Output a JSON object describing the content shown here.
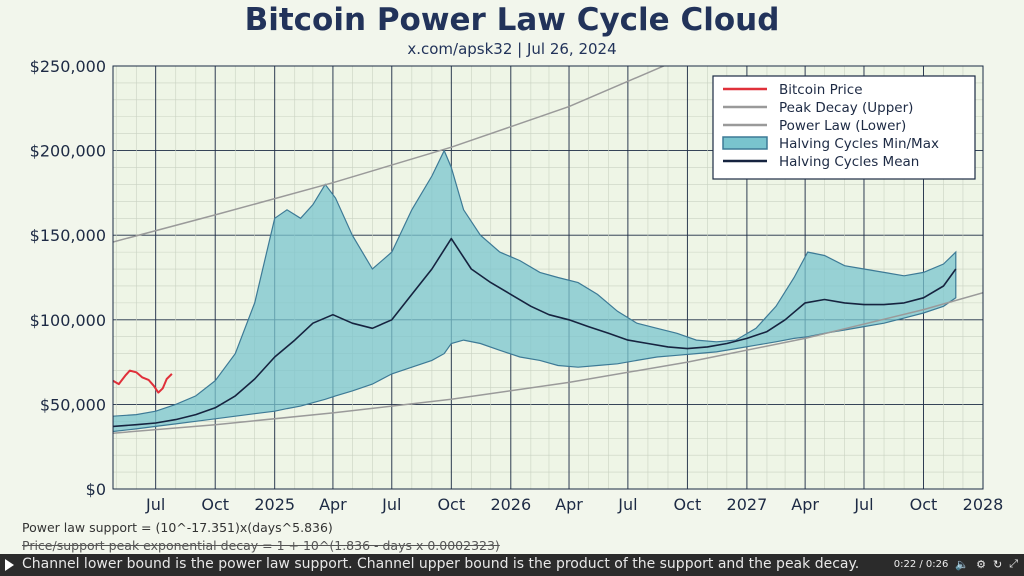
{
  "chart_data": {
    "type": "line",
    "title": "Bitcoin Power Law Cycle Cloud",
    "subtitle": "x.com/apsk32  |  Jul 26, 2024",
    "x_ticks": [
      "Jul",
      "Oct",
      "2025",
      "Apr",
      "Jul",
      "Oct",
      "2026",
      "Apr",
      "Jul",
      "Oct",
      "2027",
      "Apr",
      "Jul",
      "Oct",
      "2028"
    ],
    "x_tick_dates": [
      "2024-07-01",
      "2024-10-01",
      "2025-01-01",
      "2025-04-01",
      "2025-07-01",
      "2025-10-01",
      "2026-01-01",
      "2026-04-01",
      "2026-07-01",
      "2026-10-01",
      "2027-01-01",
      "2027-04-01",
      "2027-07-01",
      "2027-10-01",
      "2028-01-01"
    ],
    "x_range": [
      "2024-04-26",
      "2028-01-01"
    ],
    "y_ticks": [
      "$0",
      "$50,000",
      "$100,000",
      "$150,000",
      "$200,000",
      "$250,000"
    ],
    "y_tick_values": [
      0,
      50000,
      100000,
      150000,
      200000,
      250000
    ],
    "ylim": [
      0,
      250000
    ],
    "grid": true,
    "legend_position": "top-right",
    "legend": [
      "Bitcoin Price",
      "Peak Decay (Upper)",
      "Power Law (Lower)",
      "Halving Cycles Min/Max",
      "Halving Cycles Mean"
    ],
    "colors": {
      "price": "#e0303a",
      "upper": "#9a9a9a",
      "lower": "#9a9a9a",
      "band_fill": "#79c4ce",
      "band_edge": "#3d7a96",
      "mean": "#16233f"
    },
    "series": [
      {
        "name": "Bitcoin Price",
        "x": [
          "2024-04-26",
          "2024-05-05",
          "2024-05-15",
          "2024-05-22",
          "2024-06-01",
          "2024-06-10",
          "2024-06-20",
          "2024-06-28",
          "2024-07-05",
          "2024-07-12",
          "2024-07-18",
          "2024-07-26"
        ],
        "y": [
          64000,
          62000,
          67000,
          70000,
          69000,
          66000,
          64500,
          61000,
          57000,
          59500,
          65000,
          68000
        ]
      },
      {
        "name": "Peak Decay (Upper)",
        "x": [
          "2024-04-26",
          "2024-10-01",
          "2025-04-01",
          "2025-10-01",
          "2026-04-01",
          "2026-10-01"
        ],
        "y": [
          146000,
          162000,
          181000,
          202000,
          226000,
          256000
        ]
      },
      {
        "name": "Power Law (Lower)",
        "x": [
          "2024-04-26",
          "2024-10-01",
          "2025-04-01",
          "2025-10-01",
          "2026-04-01",
          "2026-10-01",
          "2027-04-01",
          "2027-10-01",
          "2028-01-01"
        ],
        "y": [
          33000,
          38000,
          45000,
          53000,
          63000,
          75000,
          89000,
          106000,
          116000
        ]
      },
      {
        "name": "Halving Cycles Min/Max",
        "x": [
          "2024-04-26",
          "2024-06-01",
          "2024-07-01",
          "2024-08-01",
          "2024-09-01",
          "2024-10-01",
          "2024-11-01",
          "2024-12-01",
          "2025-01-01",
          "2025-01-20",
          "2025-02-10",
          "2025-03-01",
          "2025-03-20",
          "2025-04-05",
          "2025-05-01",
          "2025-06-01",
          "2025-07-01",
          "2025-08-01",
          "2025-09-01",
          "2025-09-20",
          "2025-10-01",
          "2025-10-20",
          "2025-11-15",
          "2025-12-15",
          "2026-01-15",
          "2026-02-15",
          "2026-03-15",
          "2026-04-15",
          "2026-05-15",
          "2026-06-15",
          "2026-07-15",
          "2026-08-15",
          "2026-09-15",
          "2026-10-15",
          "2026-11-15",
          "2026-12-15",
          "2027-01-15",
          "2027-02-15",
          "2027-03-15",
          "2027-04-05",
          "2027-05-01",
          "2027-06-01",
          "2027-07-01",
          "2027-08-01",
          "2027-09-01",
          "2027-10-01",
          "2027-11-01",
          "2027-11-20"
        ],
        "min": [
          34000,
          35500,
          37000,
          38500,
          40000,
          41500,
          43000,
          44500,
          46000,
          47500,
          49000,
          51000,
          53000,
          55000,
          58000,
          62000,
          68000,
          72000,
          76000,
          80000,
          86000,
          88000,
          86000,
          82000,
          78000,
          76000,
          73000,
          72000,
          73000,
          74000,
          76000,
          78000,
          79000,
          80000,
          81000,
          83000,
          85000,
          87000,
          89000,
          90000,
          92000,
          94000,
          96000,
          98000,
          101000,
          104000,
          108000,
          113000
        ],
        "max": [
          43000,
          44000,
          46000,
          50000,
          55000,
          64000,
          80000,
          110000,
          160000,
          165000,
          160000,
          168000,
          180000,
          172000,
          150000,
          130000,
          140000,
          165000,
          185000,
          200000,
          190000,
          165000,
          150000,
          140000,
          135000,
          128000,
          125000,
          122000,
          115000,
          105000,
          98000,
          95000,
          92000,
          88000,
          87000,
          88000,
          95000,
          108000,
          125000,
          140000,
          138000,
          132000,
          130000,
          128000,
          126000,
          128000,
          133000,
          140000
        ]
      },
      {
        "name": "Halving Cycles Mean",
        "x": [
          "2024-04-26",
          "2024-06-01",
          "2024-07-01",
          "2024-08-01",
          "2024-09-01",
          "2024-10-01",
          "2024-11-01",
          "2024-12-01",
          "2025-01-01",
          "2025-02-01",
          "2025-03-01",
          "2025-04-01",
          "2025-05-01",
          "2025-06-01",
          "2025-07-01",
          "2025-08-01",
          "2025-09-01",
          "2025-10-01",
          "2025-11-01",
          "2025-12-01",
          "2026-01-01",
          "2026-02-01",
          "2026-03-01",
          "2026-04-01",
          "2026-05-01",
          "2026-06-01",
          "2026-07-01",
          "2026-08-01",
          "2026-09-01",
          "2026-10-01",
          "2026-11-01",
          "2026-12-01",
          "2027-01-01",
          "2027-02-01",
          "2027-03-01",
          "2027-04-01",
          "2027-05-01",
          "2027-06-01",
          "2027-07-01",
          "2027-08-01",
          "2027-09-01",
          "2027-10-01",
          "2027-11-01",
          "2027-11-20"
        ],
        "y": [
          37000,
          38000,
          39000,
          41000,
          44000,
          48000,
          55000,
          65000,
          78000,
          88000,
          98000,
          103000,
          98000,
          95000,
          100000,
          115000,
          130000,
          148000,
          130000,
          122000,
          115000,
          108000,
          103000,
          100000,
          96000,
          92000,
          88000,
          86000,
          84000,
          83000,
          84000,
          86000,
          89000,
          93000,
          100000,
          110000,
          112000,
          110000,
          109000,
          109000,
          110000,
          113000,
          120000,
          130000
        ]
      }
    ]
  },
  "notes": {
    "line1": "Power law support = (10^-17.351)x(days^5.836)",
    "line2": "Price/support peak exponential decay = 1 + 10^(1.836 - days x 0.0002323)"
  },
  "caption": {
    "text": "Channel lower bound is the power law support. Channel upper bound is the product of the support and the peak decay.",
    "time": "0:22 / 0:26"
  }
}
